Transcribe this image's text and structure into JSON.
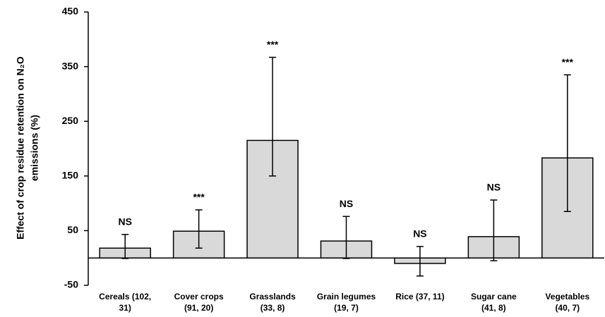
{
  "chart_data": {
    "type": "bar",
    "ylabel": [
      "Effect of crop residue retention on N₂O",
      "emissions (%)"
    ],
    "categories": [
      [
        "Cereals (102,",
        "31)"
      ],
      [
        "Cover crops",
        "(91, 20)"
      ],
      [
        "Grasslands",
        "(33, 8)"
      ],
      [
        "Grain legumes",
        "(19, 7)"
      ],
      [
        "Rice (37, 11)"
      ],
      [
        "Sugar cane",
        "(41, 8)"
      ],
      [
        "Vegetables",
        "(40, 7)"
      ]
    ],
    "values": [
      18,
      49,
      215,
      31,
      -10,
      39,
      183
    ],
    "ci_lower": [
      -1,
      18,
      150,
      -1,
      -33,
      -5,
      85
    ],
    "ci_upper": [
      43,
      88,
      367,
      76,
      21,
      106,
      335
    ],
    "significance": [
      "NS",
      "***",
      "***",
      "NS",
      "NS",
      "NS",
      "***"
    ],
    "color": "#d9d9d9",
    "ylim": [
      -50,
      450
    ],
    "yticks": [
      -50,
      50,
      150,
      250,
      350,
      450
    ]
  }
}
